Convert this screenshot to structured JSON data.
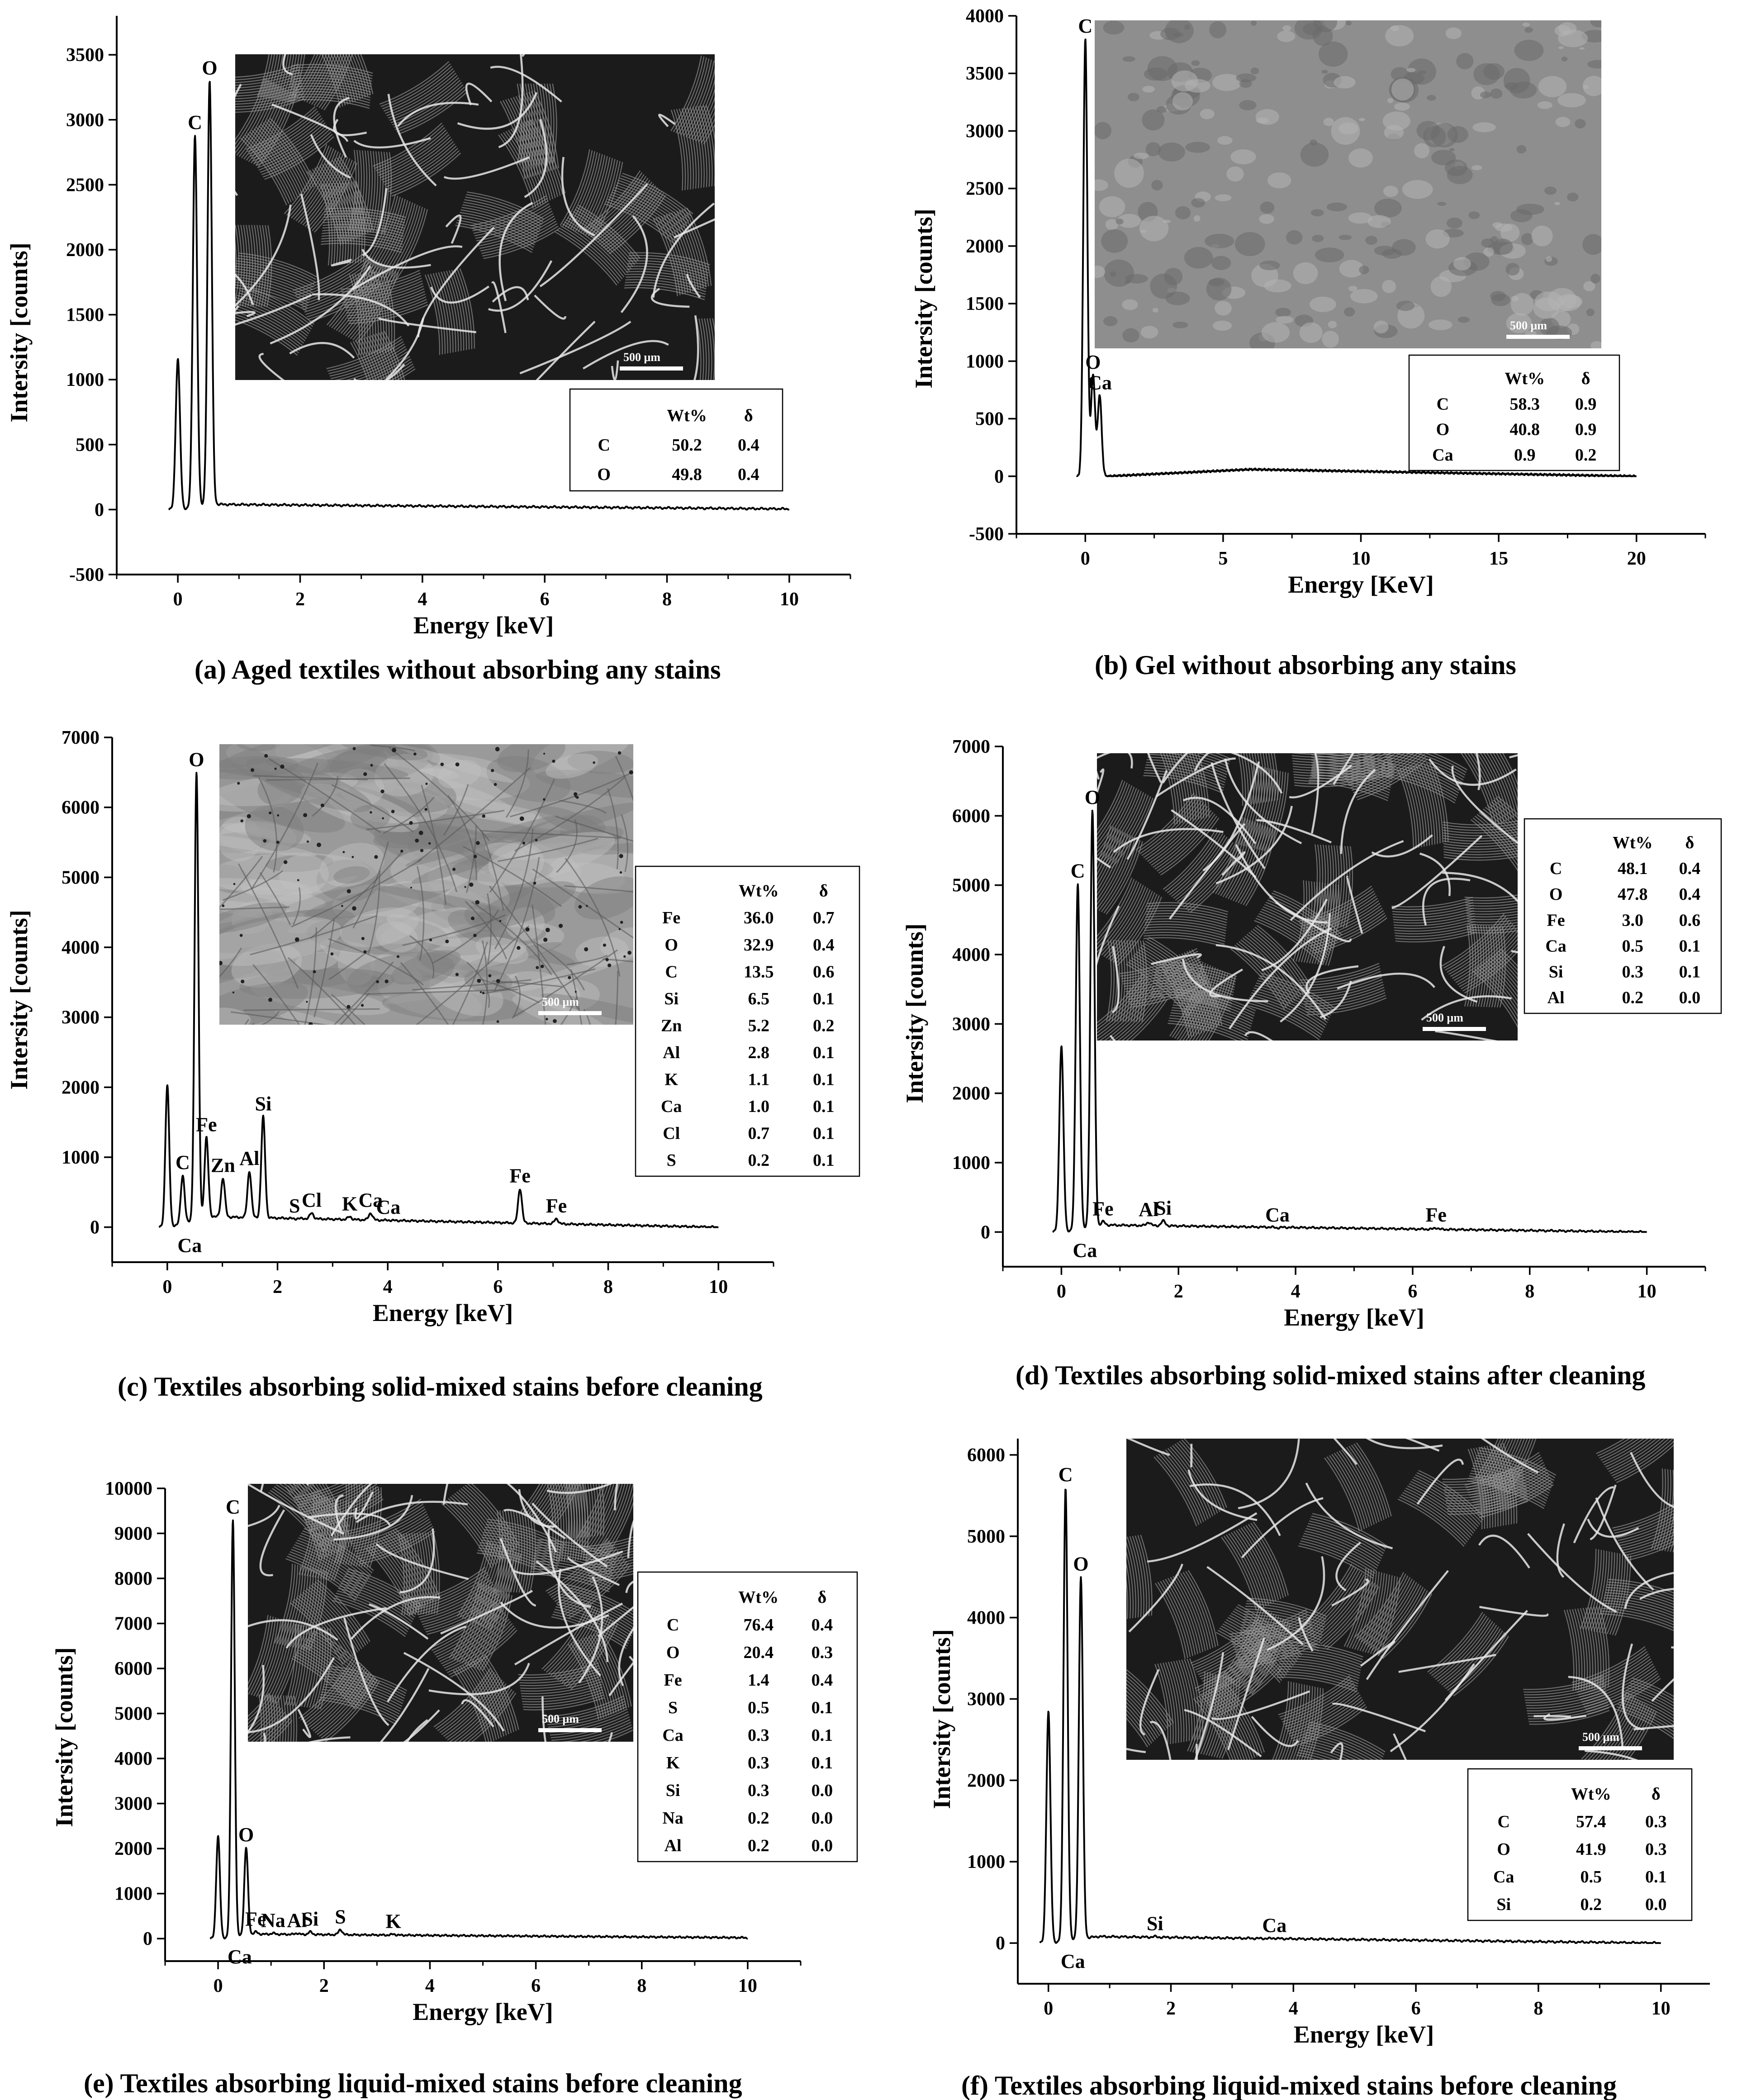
{
  "figure": {
    "panels": [
      {
        "id": "a",
        "caption": "(a) Aged textiles without absorbing any stains",
        "xlabel": "Energy [keV]",
        "ylabel": "Intersity [counts]",
        "xlim": [
          -1,
          11
        ],
        "ylim": [
          -500,
          3800
        ],
        "xticks": [
          0,
          2,
          4,
          6,
          8,
          10
        ],
        "yticks": [
          -500,
          0,
          500,
          1000,
          1500,
          2000,
          2500,
          3000,
          3500
        ],
        "table": {
          "header": [
            "",
            "Wt%",
            "δ"
          ],
          "rows": [
            [
              "C",
              "50.2",
              "0.4"
            ],
            [
              "O",
              "49.8",
              "0.4"
            ]
          ]
        },
        "sem_scale_bar": "500 μm",
        "sem_style": "fibers"
      },
      {
        "id": "b",
        "caption": "(b) Gel without absorbing any stains",
        "xlabel": "Energy [KeV]",
        "ylabel": "Intersity [counts]",
        "xlim": [
          -2.5,
          22.5
        ],
        "ylim": [
          -500,
          4000
        ],
        "xticks": [
          0,
          5,
          10,
          15,
          20
        ],
        "yticks": [
          -500,
          0,
          500,
          1000,
          1500,
          2000,
          2500,
          3000,
          3500,
          4000
        ],
        "table": {
          "header": [
            "",
            "Wt%",
            "δ"
          ],
          "rows": [
            [
              "C",
              "58.3",
              "0.9"
            ],
            [
              "O",
              "40.8",
              "0.9"
            ],
            [
              "Ca",
              "0.9",
              "0.2"
            ]
          ]
        },
        "sem_scale_bar": "500 μm",
        "sem_style": "gel"
      },
      {
        "id": "c",
        "caption": "(c) Textiles  absorbing solid-mixed stains before cleaning",
        "xlabel": "Energy [keV]",
        "ylabel": "Intersity [counts]",
        "xlim": [
          -1,
          11
        ],
        "ylim": [
          -500,
          7000
        ],
        "xticks": [
          0,
          2,
          4,
          6,
          8,
          10
        ],
        "yticks": [
          0,
          1000,
          2000,
          3000,
          4000,
          5000,
          6000,
          7000
        ],
        "table": {
          "header": [
            "",
            "Wt%",
            "δ"
          ],
          "rows": [
            [
              "Fe",
              "36.0",
              "0.7"
            ],
            [
              "O",
              "32.9",
              "0.4"
            ],
            [
              "C",
              "13.5",
              "0.6"
            ],
            [
              "Si",
              "6.5",
              "0.1"
            ],
            [
              "Zn",
              "5.2",
              "0.2"
            ],
            [
              "Al",
              "2.8",
              "0.1"
            ],
            [
              "K",
              "1.1",
              "0.1"
            ],
            [
              "Ca",
              "1.0",
              "0.1"
            ],
            [
              "Cl",
              "0.7",
              "0.1"
            ],
            [
              "S",
              "0.2",
              "0.1"
            ]
          ]
        },
        "sem_scale_bar": "500 μm",
        "sem_style": "stained"
      },
      {
        "id": "d",
        "caption": "(d) Textiles  absorbing solid-mixed stains after cleaning",
        "xlabel": "Energy [keV]",
        "ylabel": "Intersity [counts]",
        "xlim": [
          -1,
          11
        ],
        "ylim": [
          -500,
          7000
        ],
        "xticks": [
          0,
          2,
          4,
          6,
          8,
          10
        ],
        "yticks": [
          0,
          1000,
          2000,
          3000,
          4000,
          5000,
          6000,
          7000
        ],
        "table": {
          "header": [
            "",
            "Wt%",
            "δ"
          ],
          "rows": [
            [
              "C",
              "48.1",
              "0.4"
            ],
            [
              "O",
              "47.8",
              "0.4"
            ],
            [
              "Fe",
              "3.0",
              "0.6"
            ],
            [
              "Ca",
              "0.5",
              "0.1"
            ],
            [
              "Si",
              "0.3",
              "0.1"
            ],
            [
              "Al",
              "0.2",
              "0.0"
            ]
          ]
        },
        "sem_scale_bar": "500 μm",
        "sem_style": "fibers"
      },
      {
        "id": "e",
        "caption": "(e) Textiles  absorbing liquid-mixed stains before cleaning",
        "xlabel": "Energy [keV]",
        "ylabel": "Intersity [counts]",
        "xlim": [
          -1,
          11
        ],
        "ylim": [
          -500,
          10000
        ],
        "xticks": [
          0,
          2,
          4,
          6,
          8,
          10
        ],
        "yticks": [
          0,
          1000,
          2000,
          3000,
          4000,
          5000,
          6000,
          7000,
          8000,
          9000,
          10000
        ],
        "table": {
          "header": [
            "",
            "Wt%",
            "δ"
          ],
          "rows": [
            [
              "C",
              "76.4",
              "0.4"
            ],
            [
              "O",
              "20.4",
              "0.3"
            ],
            [
              "Fe",
              "1.4",
              "0.4"
            ],
            [
              "S",
              "0.5",
              "0.1"
            ],
            [
              "Ca",
              "0.3",
              "0.1"
            ],
            [
              "K",
              "0.3",
              "0.1"
            ],
            [
              "Si",
              "0.3",
              "0.0"
            ],
            [
              "Na",
              "0.2",
              "0.0"
            ],
            [
              "Al",
              "0.2",
              "0.0"
            ]
          ]
        },
        "sem_scale_bar": "500 μm",
        "sem_style": "fibers"
      },
      {
        "id": "f",
        "caption": "(f) Textiles  absorbing liquid-mixed stains before cleaning",
        "xlabel": "Energy [keV]",
        "ylabel": "Intersity [counts]",
        "xlim": [
          -0.5,
          10.8
        ],
        "ylim": [
          -500,
          6200
        ],
        "xticks": [
          0,
          2,
          4,
          6,
          8,
          10
        ],
        "yticks": [
          0,
          1000,
          2000,
          3000,
          4000,
          5000,
          6000
        ],
        "table": {
          "header": [
            "",
            "Wt%",
            "δ"
          ],
          "rows": [
            [
              "C",
              "57.4",
              "0.3"
            ],
            [
              "O",
              "41.9",
              "0.3"
            ],
            [
              "Ca",
              "0.5",
              "0.1"
            ],
            [
              "Si",
              "0.2",
              "0.0"
            ]
          ]
        },
        "sem_scale_bar": "500 μm",
        "sem_style": "fibers"
      }
    ]
  },
  "chart_data": [
    {
      "type": "line",
      "title": "(a) Aged textiles without absorbing any stains",
      "xlabel": "Energy [keV]",
      "ylabel": "Intersity [counts]",
      "xlim": [
        -1,
        11
      ],
      "ylim": [
        -500,
        3800
      ],
      "baseline": [
        [
          0.6,
          40
        ],
        [
          10,
          5
        ]
      ],
      "peaks": [
        {
          "label": "",
          "x": 0.0,
          "y": 1160
        },
        {
          "label": "C",
          "x": 0.28,
          "y": 2880
        },
        {
          "label": "O",
          "x": 0.52,
          "y": 3300
        }
      ]
    },
    {
      "type": "line",
      "title": "(b) Gel without absorbing any stains",
      "xlabel": "Energy [KeV]",
      "ylabel": "Intersity [counts]",
      "xlim": [
        -2.5,
        22.5
      ],
      "ylim": [
        -500,
        4000
      ],
      "baseline": [
        [
          0.8,
          0
        ],
        [
          6,
          60
        ],
        [
          20,
          0
        ]
      ],
      "peaks": [
        {
          "label": "C",
          "x": 0.0,
          "y": 3800
        },
        {
          "label": "O",
          "x": 0.28,
          "y": 880
        },
        {
          "label": "Ca",
          "x": 0.52,
          "y": 700
        }
      ]
    },
    {
      "type": "line",
      "title": "(c) Textiles  absorbing solid-mixed stains before cleaning",
      "xlabel": "Energy [keV]",
      "ylabel": "Intersity [counts]",
      "xlim": [
        -1,
        11
      ],
      "ylim": [
        -500,
        7000
      ],
      "baseline": [
        [
          0.8,
          150
        ],
        [
          10,
          0
        ]
      ],
      "peaks": [
        {
          "label": "",
          "x": 0.0,
          "y": 2030
        },
        {
          "label": "C",
          "x": 0.28,
          "y": 740
        },
        {
          "label": "Ca",
          "x": 0.34,
          "y": 0
        },
        {
          "label": "O",
          "x": 0.53,
          "y": 6500
        },
        {
          "label": "Fe",
          "x": 0.71,
          "y": 1280
        },
        {
          "label": "Zn",
          "x": 1.01,
          "y": 700
        },
        {
          "label": "Al",
          "x": 1.49,
          "y": 800
        },
        {
          "label": "Si",
          "x": 1.74,
          "y": 1580
        },
        {
          "label": "S",
          "x": 2.31,
          "y": 120
        },
        {
          "label": "Cl",
          "x": 2.62,
          "y": 200
        },
        {
          "label": "K",
          "x": 3.31,
          "y": 150
        },
        {
          "label": "Ca",
          "x": 3.69,
          "y": 200
        },
        {
          "label": "Ca",
          "x": 4.01,
          "y": 100
        },
        {
          "label": "Fe",
          "x": 6.4,
          "y": 550
        },
        {
          "label": "Fe",
          "x": 7.06,
          "y": 120
        }
      ]
    },
    {
      "type": "line",
      "title": "(d) Textiles  absorbing solid-mixed stains after cleaning",
      "xlabel": "Energy [keV]",
      "ylabel": "Intersity [counts]",
      "xlim": [
        -1,
        11
      ],
      "ylim": [
        -500,
        7000
      ],
      "baseline": [
        [
          0.8,
          100
        ],
        [
          10,
          0
        ]
      ],
      "peaks": [
        {
          "label": "",
          "x": 0.0,
          "y": 2680
        },
        {
          "label": "C",
          "x": 0.28,
          "y": 5020
        },
        {
          "label": "Ca",
          "x": 0.34,
          "y": 0
        },
        {
          "label": "O",
          "x": 0.53,
          "y": 6080
        },
        {
          "label": "Fe",
          "x": 0.71,
          "y": 150
        },
        {
          "label": "Al",
          "x": 1.49,
          "y": 140
        },
        {
          "label": "Si",
          "x": 1.74,
          "y": 160
        },
        {
          "label": "Ca",
          "x": 3.69,
          "y": 60
        },
        {
          "label": "Fe",
          "x": 6.4,
          "y": 60
        }
      ]
    },
    {
      "type": "line",
      "title": "(e) Textiles  absorbing liquid-mixed stains before cleaning",
      "xlabel": "Energy [keV]",
      "ylabel": "Intersity [counts]",
      "xlim": [
        -1,
        11
      ],
      "ylim": [
        -500,
        10000
      ],
      "baseline": [
        [
          0.7,
          100
        ],
        [
          10,
          20
        ]
      ],
      "peaks": [
        {
          "label": "",
          "x": 0.0,
          "y": 2280
        },
        {
          "label": "C",
          "x": 0.28,
          "y": 9300
        },
        {
          "label": "Ca",
          "x": 0.34,
          "y": 0
        },
        {
          "label": "O",
          "x": 0.53,
          "y": 2020
        },
        {
          "label": "Fe",
          "x": 0.71,
          "y": 150
        },
        {
          "label": "Na",
          "x": 1.04,
          "y": 120
        },
        {
          "label": "Si",
          "x": 1.74,
          "y": 150
        },
        {
          "label": "Al",
          "x": 1.49,
          "y": 120
        },
        {
          "label": "S",
          "x": 2.31,
          "y": 200
        },
        {
          "label": "K",
          "x": 3.31,
          "y": 100
        }
      ]
    },
    {
      "type": "line",
      "title": "(f) Textiles  absorbing liquid-mixed stains before cleaning",
      "xlabel": "Energy [keV]",
      "ylabel": "Intersity [counts]",
      "xlim": [
        -0.5,
        10.8
      ],
      "ylim": [
        -500,
        6200
      ],
      "baseline": [
        [
          0.8,
          80
        ],
        [
          10,
          0
        ]
      ],
      "peaks": [
        {
          "label": "",
          "x": 0.0,
          "y": 2850
        },
        {
          "label": "C",
          "x": 0.28,
          "y": 5600
        },
        {
          "label": "Ca",
          "x": 0.34,
          "y": 0
        },
        {
          "label": "O",
          "x": 0.53,
          "y": 4500
        },
        {
          "label": "Si",
          "x": 1.74,
          "y": 80
        },
        {
          "label": "Ca",
          "x": 3.69,
          "y": 60
        }
      ]
    }
  ]
}
